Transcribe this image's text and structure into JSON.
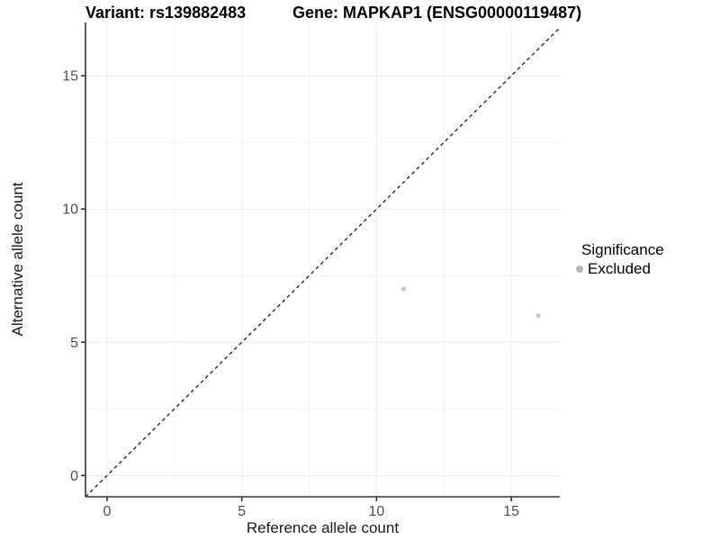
{
  "titles": {
    "left": "Variant: rs139882483",
    "right": "Gene: MAPKAP1 (ENSG00000119487)"
  },
  "axes": {
    "x": {
      "label": "Reference allele count",
      "ticks": [
        0,
        5,
        10,
        15
      ],
      "minor": [
        2.5,
        7.5,
        12.5
      ],
      "range": [
        -0.8,
        16.8
      ]
    },
    "y": {
      "label": "Alternative allele count",
      "ticks": [
        0,
        5,
        10,
        15
      ],
      "minor": [
        2.5,
        7.5,
        12.5
      ],
      "range": [
        -0.8,
        17.0
      ]
    }
  },
  "legend": {
    "title": "Significance",
    "items": [
      {
        "label": "Excluded",
        "color": "#b5b5b5"
      }
    ]
  },
  "colors": {
    "grid_major": "#eaeaea",
    "grid_minor": "#f3f3f3",
    "axis_line": "#333333",
    "tick_label": "#4d4d4d",
    "point": "#c5c5c5",
    "reference_line": "#1a1a1a"
  },
  "chart_data": {
    "type": "scatter",
    "title": "Variant: rs139882483 | Gene: MAPKAP1 (ENSG00000119487)",
    "xlabel": "Reference allele count",
    "ylabel": "Alternative allele count",
    "xlim": [
      -0.8,
      16.8
    ],
    "ylim": [
      -0.8,
      17.0
    ],
    "x_ticks": [
      0,
      5,
      10,
      15
    ],
    "y_ticks": [
      0,
      5,
      10,
      15
    ],
    "grid": {
      "major": true,
      "minor": true
    },
    "legend_position": "right",
    "series": [
      {
        "name": "Excluded",
        "color": "#c5c5c5",
        "points": [
          {
            "x": 11,
            "y": 7
          },
          {
            "x": 16,
            "y": 6
          }
        ]
      }
    ],
    "reference_line": {
      "type": "identity",
      "equation": "y = x",
      "style": "dashed",
      "color": "#1a1a1a"
    }
  }
}
